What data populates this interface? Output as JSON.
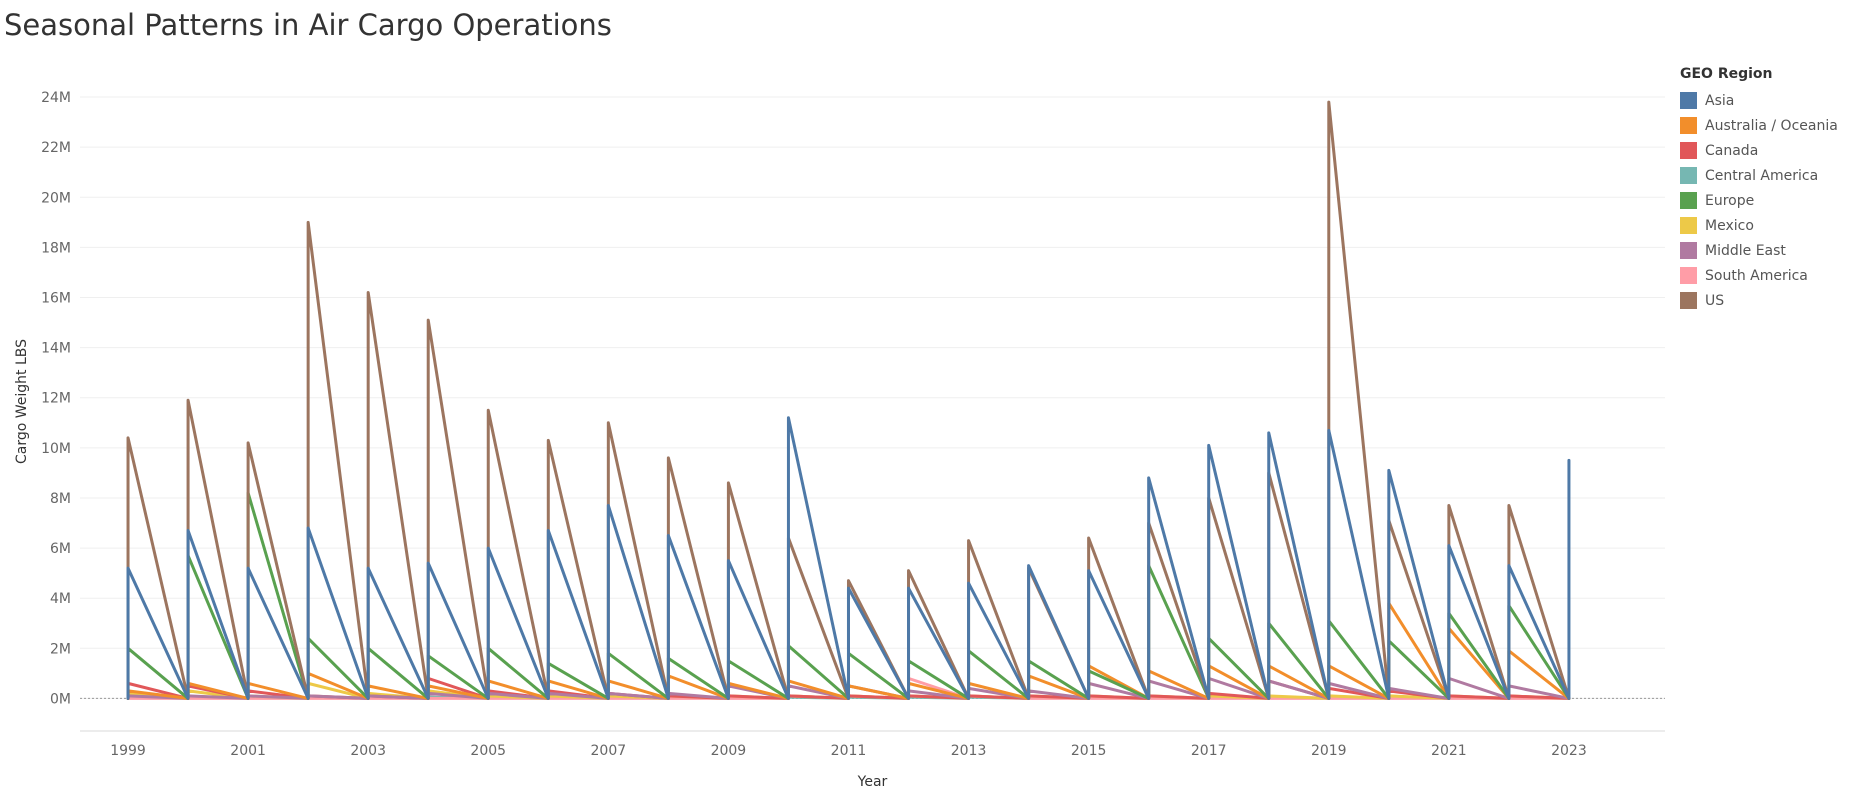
{
  "title": "Seasonal Patterns in Air Cargo Operations",
  "colors": {
    "Asia": "#4e79a7",
    "Australia / Oceania": "#f28e2b",
    "Canada": "#e15759",
    "Central America": "#76b7b2",
    "Europe": "#59a14f",
    "Mexico": "#edc948",
    "Middle East": "#b07aa1",
    "South America": "#ff9da7",
    "US": "#9c755f"
  },
  "chart_data": {
    "type": "line",
    "title": "Seasonal Patterns in Air Cargo Operations",
    "xlabel": "Year",
    "ylabel": "Cargo Weight LBS",
    "xlim": [
      1998.2,
      2024.6
    ],
    "ylim": [
      -1.3,
      25
    ],
    "x_ticks": [
      1999,
      2001,
      2003,
      2005,
      2007,
      2009,
      2011,
      2013,
      2015,
      2017,
      2019,
      2021,
      2023
    ],
    "x_tick_labels": [
      "1999",
      "2001",
      "2003",
      "2005",
      "2007",
      "2009",
      "2011",
      "2013",
      "2015",
      "2017",
      "2019",
      "2021",
      "2023"
    ],
    "y_ticks": [
      0,
      2,
      4,
      6,
      8,
      10,
      12,
      14,
      16,
      18,
      20,
      22,
      24
    ],
    "y_tick_labels": [
      "0M",
      "2M",
      "4M",
      "6M",
      "8M",
      "10M",
      "12M",
      "14M",
      "16M",
      "18M",
      "20M",
      "22M",
      "24M"
    ],
    "y_unit": "M",
    "grid": true,
    "legend_title": "GEO Region",
    "legend_position": "right",
    "pattern_note": "Each year the value starts at the yearly peak and declines to ~0 by the next year start",
    "series": [
      {
        "name": "Asia",
        "x": [
          1999,
          2000,
          2001,
          2002,
          2003,
          2004,
          2005,
          2006,
          2007,
          2008,
          2009,
          2010,
          2011,
          2012,
          2013,
          2014,
          2015,
          2016,
          2017,
          2018,
          2019,
          2020,
          2021,
          2022,
          2023
        ],
        "values": [
          5.2,
          6.7,
          5.2,
          6.8,
          5.2,
          5.4,
          6.0,
          6.7,
          7.7,
          6.5,
          5.5,
          11.2,
          4.4,
          4.4,
          4.6,
          5.3,
          5.1,
          8.8,
          10.1,
          10.6,
          10.7,
          9.1,
          6.1,
          5.3,
          9.5
        ]
      },
      {
        "name": "Australia / Oceania",
        "x": [
          1999,
          2000,
          2001,
          2002,
          2003,
          2004,
          2005,
          2006,
          2007,
          2008,
          2009,
          2010,
          2011,
          2012,
          2013,
          2014,
          2015,
          2016,
          2017,
          2018,
          2019,
          2020,
          2021,
          2022,
          2023
        ],
        "values": [
          0.3,
          0.6,
          0.6,
          1.0,
          0.5,
          0.5,
          0.7,
          0.7,
          0.7,
          0.9,
          0.6,
          0.7,
          0.5,
          0.6,
          0.6,
          0.9,
          1.3,
          1.1,
          1.3,
          1.3,
          1.3,
          3.8,
          2.8,
          1.9,
          0.0
        ]
      },
      {
        "name": "Canada",
        "x": [
          1999,
          2000,
          2001,
          2002,
          2003,
          2004,
          2005,
          2006,
          2007,
          2008,
          2009,
          2010,
          2011,
          2012,
          2013,
          2014,
          2015,
          2016,
          2017,
          2018,
          2019,
          2020,
          2021,
          2022,
          2023
        ],
        "values": [
          0.6,
          0.5,
          0.3,
          0.1,
          0.1,
          0.8,
          0.3,
          0.3,
          0.2,
          0.1,
          0.1,
          0.1,
          0.1,
          0.1,
          0.1,
          0.1,
          0.1,
          0.1,
          0.2,
          0.7,
          0.4,
          0.3,
          0.1,
          0.1,
          0.0
        ]
      },
      {
        "name": "Central America",
        "x": [
          1999,
          2000,
          2001,
          2002,
          2003,
          2004,
          2005,
          2006,
          2007,
          2008,
          2009,
          2010,
          2011,
          2012,
          2013,
          2014,
          2015,
          2016,
          2017,
          2018,
          2019,
          2020,
          2021,
          2022,
          2023
        ],
        "values": [
          0.05,
          0.05,
          0.05,
          0.05,
          0.05,
          0.05,
          0.05,
          0.05,
          0.05,
          0.05,
          0.05,
          0.05,
          0.05,
          0.05,
          0.05,
          0.05,
          0.05,
          0.05,
          0.05,
          0.05,
          0.05,
          0.05,
          0.05,
          0.05,
          0.0
        ]
      },
      {
        "name": "Europe",
        "x": [
          1999,
          2000,
          2001,
          2002,
          2003,
          2004,
          2005,
          2006,
          2007,
          2008,
          2009,
          2010,
          2011,
          2012,
          2013,
          2014,
          2015,
          2016,
          2017,
          2018,
          2019,
          2020,
          2021,
          2022,
          2023
        ],
        "values": [
          2.0,
          5.7,
          8.2,
          2.4,
          2.0,
          1.7,
          2.0,
          1.4,
          1.8,
          1.6,
          1.5,
          2.1,
          1.8,
          1.5,
          1.9,
          1.5,
          1.1,
          5.3,
          2.4,
          3.0,
          3.1,
          2.3,
          3.4,
          3.7,
          0.0
        ]
      },
      {
        "name": "Mexico",
        "x": [
          1999,
          2000,
          2001,
          2002,
          2003,
          2004,
          2005,
          2006,
          2007,
          2008,
          2009,
          2010,
          2011,
          2012,
          2013,
          2014,
          2015,
          2016,
          2017,
          2018,
          2019,
          2020,
          2021,
          2022,
          2023
        ],
        "values": [
          0.2,
          0.3,
          0.1,
          0.6,
          0.2,
          0.3,
          0.1,
          0.1,
          0.1,
          0.1,
          0.1,
          0.1,
          0.1,
          0.1,
          0.1,
          0.1,
          0.1,
          0.1,
          0.1,
          0.1,
          0.1,
          0.1,
          0.1,
          0.1,
          0.0
        ]
      },
      {
        "name": "Middle East",
        "x": [
          1999,
          2000,
          2001,
          2002,
          2003,
          2004,
          2005,
          2006,
          2007,
          2008,
          2009,
          2010,
          2011,
          2012,
          2013,
          2014,
          2015,
          2016,
          2017,
          2018,
          2019,
          2020,
          2021,
          2022,
          2023
        ],
        "values": [
          0.1,
          0.1,
          0.1,
          0.1,
          0.1,
          0.2,
          0.2,
          0.2,
          0.2,
          0.2,
          0.5,
          0.5,
          0.5,
          0.3,
          0.4,
          0.3,
          0.6,
          0.7,
          0.8,
          0.7,
          0.6,
          0.4,
          0.8,
          0.5,
          0.0
        ]
      },
      {
        "name": "South America",
        "x": [
          1999,
          2000,
          2001,
          2002,
          2003,
          2004,
          2005,
          2006,
          2007,
          2008,
          2009,
          2010,
          2011,
          2012,
          2013,
          2014,
          2015,
          2016,
          2017,
          2018,
          2019,
          2020,
          2021,
          2022,
          2023
        ],
        "values": [
          0.0,
          0.0,
          0.0,
          0.0,
          0.0,
          0.0,
          0.0,
          0.0,
          0.0,
          0.0,
          0.0,
          0.1,
          0.1,
          0.8,
          0.1,
          0.0,
          0.0,
          0.0,
          0.0,
          0.0,
          0.0,
          0.0,
          0.0,
          0.0,
          0.0
        ]
      },
      {
        "name": "US",
        "x": [
          1999,
          2000,
          2001,
          2002,
          2003,
          2004,
          2005,
          2006,
          2007,
          2008,
          2009,
          2010,
          2011,
          2012,
          2013,
          2014,
          2015,
          2016,
          2017,
          2018,
          2019,
          2020,
          2021,
          2022,
          2023
        ],
        "values": [
          10.4,
          11.9,
          10.2,
          19.0,
          16.2,
          15.1,
          11.5,
          10.3,
          11.0,
          9.6,
          8.6,
          6.4,
          4.7,
          5.1,
          6.3,
          5.2,
          6.4,
          7.0,
          8.0,
          9.0,
          23.8,
          7.1,
          7.7,
          7.7,
          0.0
        ]
      }
    ]
  }
}
